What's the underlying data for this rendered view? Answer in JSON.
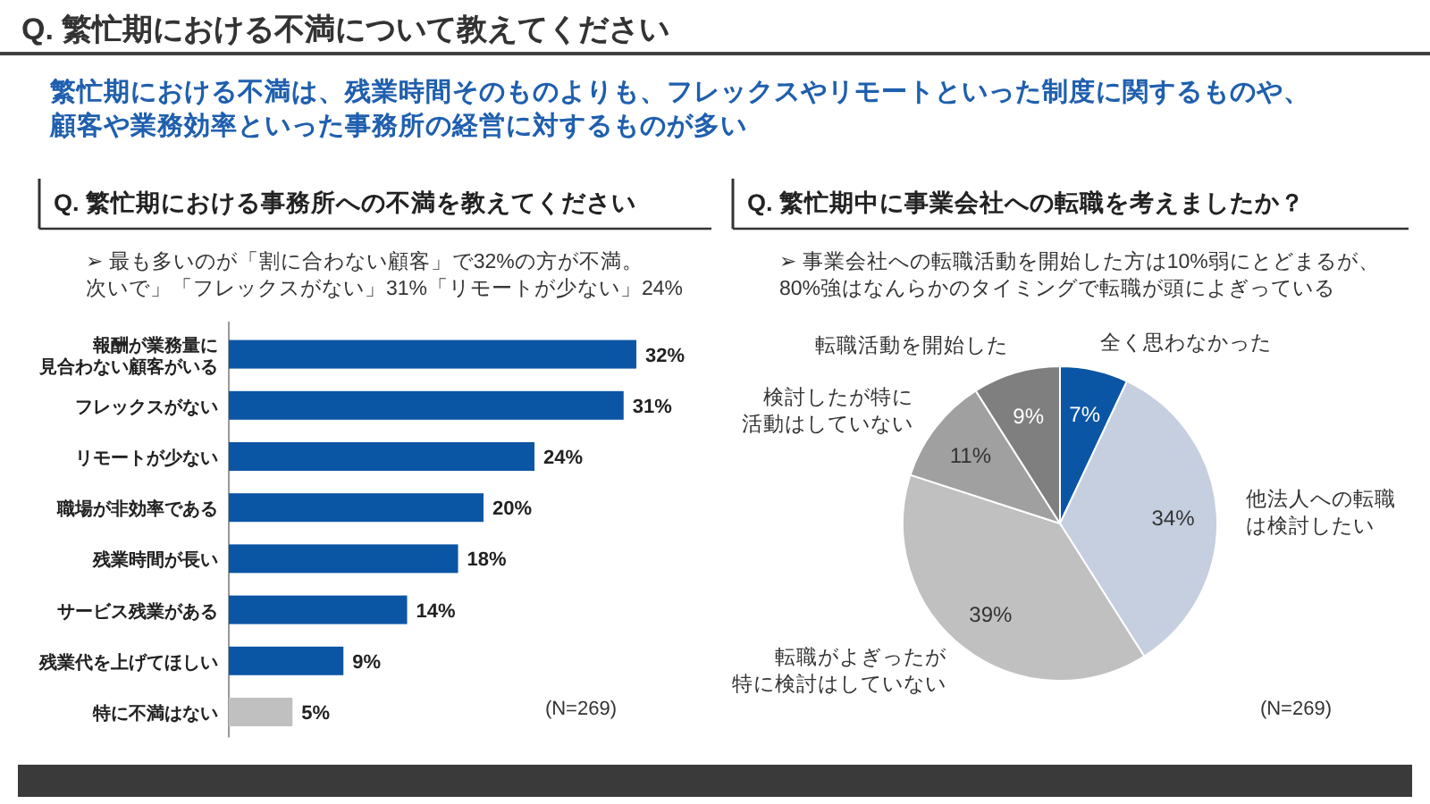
{
  "chart_data": [
    {
      "type": "other",
      "title": "Q. 繁忙期における不満について教えてください",
      "subtitle": "繁忙期における不満は、残業時間そのものよりも、フレックスやリモートといった制度に関するものや、顧客や業務効率といった事務所の経営に対するものが多い"
    },
    {
      "type": "bar",
      "orientation": "horizontal",
      "title": "Q. 繁忙期における事務所への不満を教えてください",
      "categories": [
        "報酬が業務量に見合わない顧客がいる",
        "フレックスがない",
        "リモートが少ない",
        "職場が非効率である",
        "残業時間が長い",
        "サービス残業がある",
        "残業代を上げてほしい",
        "特に不満はない"
      ],
      "values": [
        32,
        31,
        24,
        20,
        18,
        14,
        9,
        5
      ],
      "colors": [
        "#0b55a5",
        "#0b55a5",
        "#0b55a5",
        "#0b55a5",
        "#0b55a5",
        "#0b55a5",
        "#0b55a5",
        "#c0c0c0"
      ],
      "value_labels": [
        "32%",
        "31%",
        "24%",
        "20%",
        "18%",
        "14%",
        "9%",
        "5%"
      ],
      "annotations": [
        "➢  最も多いのが「割に合わない顧客」で32%の方が不満。次いで」「フレックスがない」31%「リモートが少ない」24%",
        "(N=269)"
      ]
    },
    {
      "type": "pie",
      "title": "Q. 繁忙期中に事業会社への転職を考えましたか？",
      "categories": [
        "全く思わなかった",
        "他法人への転職は検討したい",
        "転職がよぎったが特に検討はしていない",
        "検討したが特に活動はしていない",
        "転職活動を開始した"
      ],
      "values": [
        7,
        34,
        39,
        11,
        9
      ],
      "colors": [
        "#0b55a5",
        "#c5cfe0",
        "#c0c0c0",
        "#a0a0a0",
        "#7f7f7f"
      ],
      "value_labels": [
        "7%",
        "34%",
        "39%",
        "11%",
        "9%"
      ],
      "annotations": [
        "➢  事業会社への転職活動を開始した方は10%弱にとどまるが、\n80%強はなんらかのタイミングで転職が頭によぎっている",
        "(N=269)"
      ]
    }
  ]
}
